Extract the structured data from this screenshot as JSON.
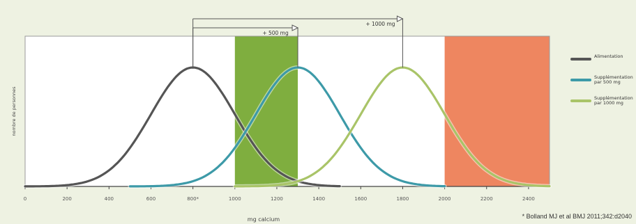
{
  "chart_data": {
    "type": "line",
    "xlabel": "mg calcium",
    "ylabel": "nombre de personnes",
    "xlim": [
      0,
      2500
    ],
    "x_ticks": [
      {
        "value": 0,
        "label": "0"
      },
      {
        "value": 200,
        "label": "200"
      },
      {
        "value": 400,
        "label": "400"
      },
      {
        "value": 600,
        "label": "600"
      },
      {
        "value": 800,
        "label": "800*"
      },
      {
        "value": 1000,
        "label": "1000"
      },
      {
        "value": 1200,
        "label": "1200"
      },
      {
        "value": 1400,
        "label": "1400"
      },
      {
        "value": 1600,
        "label": "1600"
      },
      {
        "value": 1800,
        "label": "1800"
      },
      {
        "value": 2000,
        "label": "2000"
      },
      {
        "value": 2200,
        "label": "2200"
      },
      {
        "value": 2400,
        "label": "2400"
      }
    ],
    "series": [
      {
        "name": "Alimentation",
        "color": "#555555",
        "mean": 800,
        "sd": 200,
        "x_range": [
          0,
          1500
        ]
      },
      {
        "name": "Supplémentation par 500 mg",
        "color": "#3d9aa8",
        "mean": 1300,
        "sd": 200,
        "x_range": [
          500,
          2000
        ]
      },
      {
        "name": "Supplémentation par 1000 mg",
        "color": "#a9c468",
        "mean": 1800,
        "sd": 200,
        "x_range": [
          1000,
          2500
        ]
      }
    ],
    "bands": [
      {
        "from": 1000,
        "to": 1300,
        "color": "#7fae3f"
      },
      {
        "from": 2000,
        "to": 2500,
        "color": "#ee8660"
      }
    ],
    "annotations": [
      {
        "label": "+ 500 mg",
        "from": 800,
        "to": 1300
      },
      {
        "label": "+ 1000 mg",
        "from": 800,
        "to": 1800
      }
    ],
    "legend_position": "right",
    "grid": false
  },
  "footnote": "* Bolland MJ et al BMJ 2011;342:d2040"
}
